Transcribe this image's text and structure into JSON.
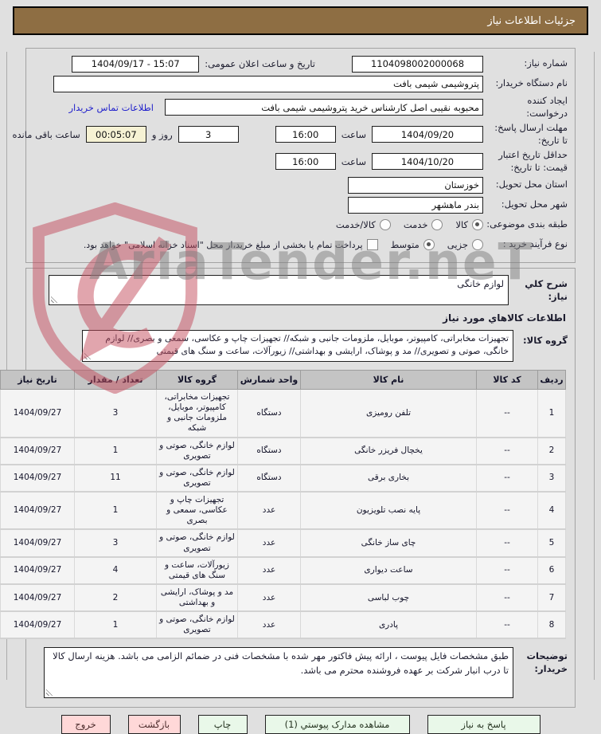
{
  "header": {
    "title": "جزئیات اطلاعات نیاز"
  },
  "watermark": {
    "text": "AriaTender.neT"
  },
  "colors": {
    "titlebar": "#8e6e43",
    "button_green": "#e9f8e9",
    "button_pink": "#ffd8d8",
    "remaining_bg": "#f6f2d4",
    "link_blue": "#2222cc"
  },
  "form": {
    "need_number": {
      "label": "شماره نیاز:",
      "value": "1104098002000068"
    },
    "announce": {
      "label": "تاریخ و ساعت اعلان عمومی:",
      "value": "1404/09/17 - 15:07"
    },
    "buyer_org": {
      "label": "نام دستگاه خریدار:",
      "value": "پتروشیمی شیمی بافت"
    },
    "requester": {
      "label": "ایجاد کننده درخواست:",
      "value": "محبوبه نقیبی اصل کارشناس خرید پتروشیمی شیمی بافت",
      "contact_link": "اطلاعات تماس خریدار"
    },
    "deadline": {
      "label": "مهلت ارسال پاسخ: تا تاریخ:",
      "date": "1404/09/20",
      "time_label": "ساعت",
      "time": "16:00",
      "days": "3",
      "days_label": "روز و",
      "remaining": "00:05:07",
      "remaining_label": "ساعت باقی مانده"
    },
    "validity": {
      "label": "حداقل تاریخ اعتبار قیمت: تا تاریخ:",
      "date": "1404/10/20",
      "time_label": "ساعت",
      "time": "16:00"
    },
    "province": {
      "label": "استان محل تحویل:",
      "value": "خوزستان"
    },
    "city": {
      "label": "شهر محل تحویل:",
      "value": "بندر ماهشهر"
    },
    "classification": {
      "label": "طبقه بندی موضوعی:",
      "options": [
        {
          "label": "کالا",
          "selected": true
        },
        {
          "label": "خدمت",
          "selected": false
        },
        {
          "label": "کالا/خدمت",
          "selected": false
        }
      ]
    },
    "process": {
      "label": "نوع فرآیند خرید :",
      "options": [
        {
          "label": "جزیی",
          "selected": false
        },
        {
          "label": "متوسط",
          "selected": true
        }
      ],
      "checkbox": {
        "label": "پرداخت تمام یا بخشی از مبلغ خرید،از محل \"اسناد خزانه اسلامی\" خواهد بود.",
        "checked": false
      }
    }
  },
  "need_description": {
    "label": "شرح کلي نیاز:",
    "value": "لوازم خانگی"
  },
  "items_section": {
    "title": "اطلاعات کالاهاي مورد نیاز",
    "group_field": {
      "label": "گروه کالا:",
      "value": "تجهیزات مخابراتی، کامپیوتر، موبایل، ملزومات جانبی و شبکه// تجهیزات چاپ و عکاسی، سمعی و بصری// لوازم خانگی، صوتی و تصویری// مد و پوشاک، ارایشی و بهداشتی// زیورآلات، ساعت و سنگ های قیمتی"
    }
  },
  "table": {
    "headers": [
      "ردیف",
      "کد کالا",
      "نام کالا",
      "واحد شمارش",
      "گروه کالا",
      "تعداد / مقدار",
      "تاریخ نیاز"
    ],
    "rows": [
      [
        "1",
        "--",
        "تلفن رومیزی",
        "دستگاه",
        "تجهیزات مخابراتی، کامپیوتر، موبایل، ملزومات جانبی و شبکه",
        "3",
        "1404/09/27"
      ],
      [
        "2",
        "--",
        "یخچال فریزر خانگی",
        "دستگاه",
        "لوازم خانگی، صوتی و تصویری",
        "1",
        "1404/09/27"
      ],
      [
        "3",
        "--",
        "بخاری برقی",
        "دستگاه",
        "لوازم خانگی، صوتی و تصویری",
        "11",
        "1404/09/27"
      ],
      [
        "4",
        "--",
        "پایه نصب تلویزیون",
        "عدد",
        "تجهیزات چاپ و عکاسی، سمعی و بصری",
        "1",
        "1404/09/27"
      ],
      [
        "5",
        "--",
        "چای ساز خانگی",
        "عدد",
        "لوازم خانگی، صوتی و تصویری",
        "3",
        "1404/09/27"
      ],
      [
        "6",
        "--",
        "ساعت دیواری",
        "عدد",
        "زیورآلات، ساعت و سنگ های قیمتی",
        "4",
        "1404/09/27"
      ],
      [
        "7",
        "--",
        "چوب لباسی",
        "عدد",
        "مد و پوشاک، ارایشی و بهداشتی",
        "2",
        "1404/09/27"
      ],
      [
        "8",
        "--",
        "پادری",
        "عدد",
        "لوازم خانگی، صوتی و تصویری",
        "1",
        "1404/09/27"
      ]
    ]
  },
  "buyer_notes": {
    "label": "توضیحات خریدار:",
    "value": "طبق مشخصات فایل پیوست ، ارائه پیش فاکتور مهر شده با مشخصات فنی در ضمائم الزامی می باشد. هزینه ارسال کالا تا درب انبار شرکت بر عهده فروشنده محترم می باشد."
  },
  "buttons": {
    "respond": "پاسخ به نیاز",
    "attachments": "مشاهده مدارک پیوستي (1)",
    "print": "چاپ",
    "back": "بازگشت",
    "exit": "خروج"
  }
}
